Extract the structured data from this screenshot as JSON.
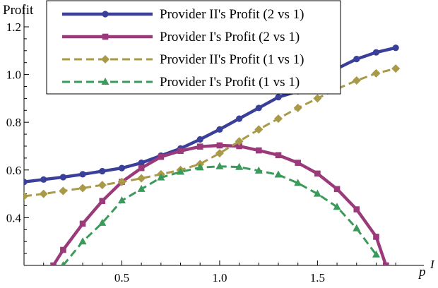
{
  "chart_data": {
    "type": "line",
    "title": "",
    "ylabel": "Profit",
    "xlabel": "p",
    "xlabel_sup": "I",
    "xlim": [
      0.0,
      1.95
    ],
    "ylim": [
      0.2,
      1.2
    ],
    "xticks": [
      0.5,
      1.0,
      1.5
    ],
    "xtick_labels": [
      "0.5",
      "1.0",
      "1.5"
    ],
    "yticks": [
      0.4,
      0.6,
      0.8,
      1.0,
      1.2
    ],
    "ytick_labels": [
      "0.4",
      "0.6",
      "0.8",
      "1.0",
      "1.2"
    ],
    "legend_position": "top-left",
    "series": [
      {
        "name": "Provider  II's Profit  (2 vs 1)",
        "color": "#3a3f99",
        "dash": "solid",
        "marker": "circle",
        "x": [
          0.0,
          0.1,
          0.2,
          0.3,
          0.4,
          0.5,
          0.6,
          0.7,
          0.8,
          0.9,
          1.0,
          1.1,
          1.2,
          1.3,
          1.4,
          1.5,
          1.6,
          1.7,
          1.8,
          1.9
        ],
        "y": [
          0.55,
          0.56,
          0.57,
          0.582,
          0.595,
          0.608,
          0.63,
          0.66,
          0.69,
          0.728,
          0.77,
          0.815,
          0.86,
          0.905,
          0.93,
          0.975,
          1.025,
          1.065,
          1.093,
          1.112
        ]
      },
      {
        "name": "Provider  I's Profit  (2 vs 1)",
        "color": "#9b3a7a",
        "dash": "solid",
        "marker": "square",
        "x": [
          0.15,
          0.2,
          0.3,
          0.4,
          0.5,
          0.6,
          0.7,
          0.8,
          0.9,
          1.0,
          1.1,
          1.2,
          1.3,
          1.4,
          1.5,
          1.6,
          1.7,
          1.8,
          1.85
        ],
        "y": [
          0.2,
          0.265,
          0.375,
          0.47,
          0.55,
          0.608,
          0.655,
          0.68,
          0.698,
          0.703,
          0.7,
          0.682,
          0.662,
          0.63,
          0.585,
          0.52,
          0.435,
          0.32,
          0.2
        ]
      },
      {
        "name": "Provider  II's Profit  (1 vs 1)",
        "color": "#a99a4a",
        "dash": "dashed",
        "marker": "diamond",
        "x": [
          0.0,
          0.1,
          0.2,
          0.3,
          0.4,
          0.5,
          0.6,
          0.7,
          0.8,
          0.9,
          1.0,
          1.1,
          1.2,
          1.3,
          1.4,
          1.5,
          1.6,
          1.7,
          1.8,
          1.9
        ],
        "y": [
          0.49,
          0.5,
          0.512,
          0.524,
          0.537,
          0.55,
          0.565,
          0.582,
          0.6,
          0.625,
          0.67,
          0.72,
          0.77,
          0.815,
          0.86,
          0.9,
          0.94,
          0.975,
          1.005,
          1.025
        ]
      },
      {
        "name": "Provider  I's Profit  (1 vs 1)",
        "color": "#3a9a5a",
        "dash": "dashed",
        "marker": "triangle",
        "x": [
          0.2,
          0.3,
          0.4,
          0.5,
          0.6,
          0.7,
          0.8,
          0.9,
          1.0,
          1.1,
          1.2,
          1.3,
          1.4,
          1.5,
          1.6,
          1.7,
          1.8
        ],
        "y": [
          0.2,
          0.3,
          0.378,
          0.472,
          0.52,
          0.568,
          0.592,
          0.61,
          0.615,
          0.612,
          0.597,
          0.58,
          0.545,
          0.5,
          0.445,
          0.355,
          0.245
        ]
      }
    ]
  }
}
